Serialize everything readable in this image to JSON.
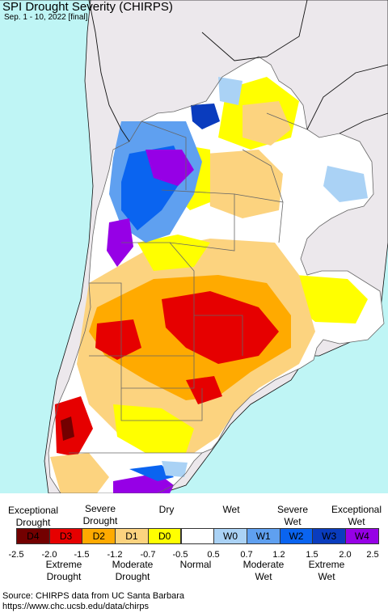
{
  "map": {
    "title": "SPI Drought Severity (CHIRPS)",
    "subtitle": "Sep. 1 - 10, 2022 [final]",
    "colors": {
      "ocean": "#bff5f5",
      "foreign_land": "#ece8ec",
      "border": "#111111"
    }
  },
  "legend": {
    "top_labels": [
      {
        "line1": "Exceptional",
        "line2": "Drought"
      },
      {
        "line1": "Severe",
        "line2": "Drought"
      },
      {
        "line1": "",
        "line2": "Dry"
      },
      {
        "line1": "",
        "line2": "Wet"
      },
      {
        "line1": "Severe",
        "line2": "Wet"
      },
      {
        "line1": "Exceptional",
        "line2": "Wet"
      }
    ],
    "categories": [
      {
        "code": "D4",
        "color": "#730000"
      },
      {
        "code": "D3",
        "color": "#e60000"
      },
      {
        "code": "D2",
        "color": "#ffaa00"
      },
      {
        "code": "D1",
        "color": "#fcd37f"
      },
      {
        "code": "D0",
        "color": "#ffff00"
      },
      {
        "code": "",
        "color": "#ffffff"
      },
      {
        "code": "W0",
        "color": "#aad2f5"
      },
      {
        "code": "W1",
        "color": "#5fa0f0"
      },
      {
        "code": "W2",
        "color": "#0a64f0"
      },
      {
        "code": "W3",
        "color": "#0a3cbe"
      },
      {
        "code": "W4",
        "color": "#9600e6"
      }
    ],
    "ticks": [
      "-2.5",
      "-2.0",
      "-1.5",
      "-1.2",
      "-0.7",
      "-0.5",
      "0.5",
      "0.7",
      "1.2",
      "1.5",
      "2.0",
      "2.5"
    ],
    "bottom_labels": [
      {
        "line1": "Extreme",
        "line2": "Drought"
      },
      {
        "line1": "Moderate",
        "line2": "Drought"
      },
      {
        "line1": "Normal",
        "line2": ""
      },
      {
        "line1": "Moderate",
        "line2": "Wet"
      },
      {
        "line1": "Extreme",
        "line2": "Wet"
      }
    ]
  },
  "source": {
    "line1": "Source: CHIRPS data from UC Santa Barbara",
    "line2": "https://www.chc.ucsb.edu/data/chirps"
  }
}
